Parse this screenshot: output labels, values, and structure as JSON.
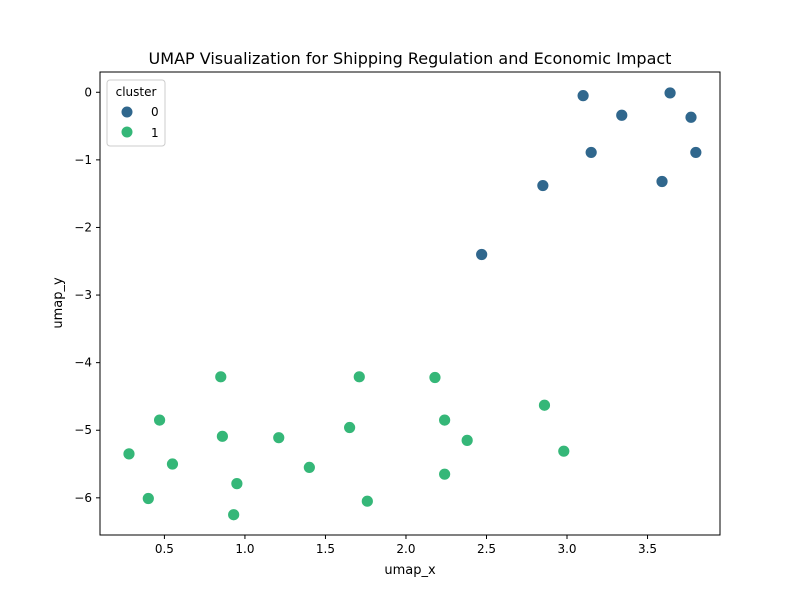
{
  "chart_data": {
    "type": "scatter",
    "title": "UMAP Visualization for Shipping Regulation and Economic Impact",
    "xlabel": "umap_x",
    "ylabel": "umap_y",
    "xlim": [
      0.1,
      3.95
    ],
    "ylim": [
      -6.55,
      0.3
    ],
    "xticks": [
      0.5,
      1.0,
      1.5,
      2.0,
      2.5,
      3.0,
      3.5
    ],
    "xtick_labels": [
      "0.5",
      "1.0",
      "1.5",
      "2.0",
      "2.5",
      "3.0",
      "3.5"
    ],
    "yticks": [
      0,
      -1,
      -2,
      -3,
      -4,
      -5,
      -6
    ],
    "ytick_labels": [
      "0",
      "−1",
      "−2",
      "−3",
      "−4",
      "−5",
      "−6"
    ],
    "grid": false,
    "legend": {
      "title": "cluster",
      "placement": "top-left",
      "entries": [
        {
          "label": "0",
          "color": "#30678d"
        },
        {
          "label": "1",
          "color": "#35b778"
        }
      ]
    },
    "series": [
      {
        "name": "0",
        "color": "#30678d",
        "points": [
          {
            "x": 3.1,
            "y": -0.05
          },
          {
            "x": 3.64,
            "y": -0.01
          },
          {
            "x": 3.34,
            "y": -0.34
          },
          {
            "x": 3.77,
            "y": -0.37
          },
          {
            "x": 3.15,
            "y": -0.89
          },
          {
            "x": 3.8,
            "y": -0.89
          },
          {
            "x": 3.59,
            "y": -1.32
          },
          {
            "x": 2.85,
            "y": -1.38
          },
          {
            "x": 2.47,
            "y": -2.4
          }
        ]
      },
      {
        "name": "1",
        "color": "#35b778",
        "points": [
          {
            "x": 0.85,
            "y": -4.21
          },
          {
            "x": 1.71,
            "y": -4.21
          },
          {
            "x": 2.18,
            "y": -4.22
          },
          {
            "x": 2.86,
            "y": -4.63
          },
          {
            "x": 0.47,
            "y": -4.85
          },
          {
            "x": 2.24,
            "y": -4.85
          },
          {
            "x": 1.65,
            "y": -4.96
          },
          {
            "x": 0.86,
            "y": -5.09
          },
          {
            "x": 1.21,
            "y": -5.11
          },
          {
            "x": 2.38,
            "y": -5.15
          },
          {
            "x": 2.98,
            "y": -5.31
          },
          {
            "x": 0.28,
            "y": -5.35
          },
          {
            "x": 0.55,
            "y": -5.5
          },
          {
            "x": 1.4,
            "y": -5.55
          },
          {
            "x": 2.24,
            "y": -5.65
          },
          {
            "x": 0.95,
            "y": -5.79
          },
          {
            "x": 0.4,
            "y": -6.01
          },
          {
            "x": 1.76,
            "y": -6.05
          },
          {
            "x": 0.93,
            "y": -6.25
          }
        ]
      }
    ]
  }
}
